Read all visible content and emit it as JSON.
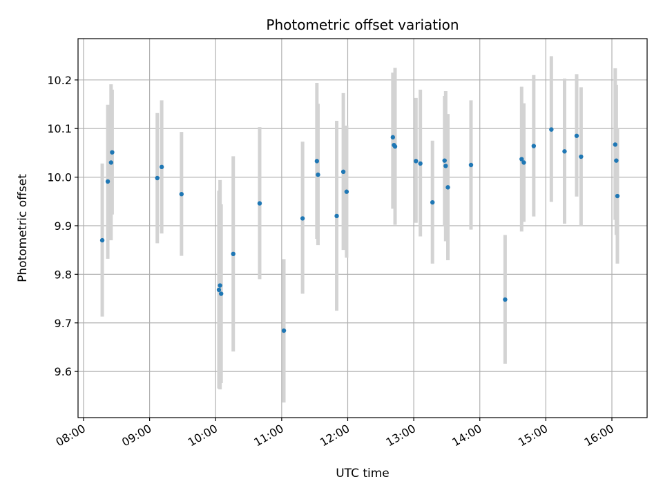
{
  "chart_data": {
    "type": "scatter",
    "title": "Photometric offset variation",
    "xlabel": "UTC time",
    "ylabel": "Photometric offset",
    "xlim": [
      "07:55",
      "16:32"
    ],
    "ylim": [
      9.505,
      10.285
    ],
    "xticks": [
      "08:00",
      "09:00",
      "10:00",
      "11:00",
      "12:00",
      "13:00",
      "14:00",
      "15:00",
      "16:00"
    ],
    "yticks": [
      9.6,
      9.7,
      9.8,
      9.9,
      10.0,
      10.1,
      10.2
    ],
    "grid": true,
    "colors": {
      "point": "#1f77b4",
      "errorbar": "#d3d3d3",
      "grid": "#b0b0b0"
    },
    "points": [
      {
        "x": "08:17",
        "y": 9.87,
        "ylow": 9.713,
        "yhigh": 10.028
      },
      {
        "x": "08:22",
        "y": 9.991,
        "ylow": 9.832,
        "yhigh": 10.149
      },
      {
        "x": "08:25",
        "y": 10.03,
        "ylow": 9.87,
        "yhigh": 10.191
      },
      {
        "x": "08:26",
        "y": 10.051,
        "ylow": 9.923,
        "yhigh": 10.18
      },
      {
        "x": "09:07",
        "y": 9.998,
        "ylow": 9.864,
        "yhigh": 10.132
      },
      {
        "x": "09:11",
        "y": 10.021,
        "ylow": 9.884,
        "yhigh": 10.158
      },
      {
        "x": "09:29",
        "y": 9.965,
        "ylow": 9.838,
        "yhigh": 10.093
      },
      {
        "x": "10:03",
        "y": 9.768,
        "ylow": 9.565,
        "yhigh": 9.972
      },
      {
        "x": "10:04",
        "y": 9.777,
        "ylow": 9.563,
        "yhigh": 9.994
      },
      {
        "x": "10:05",
        "y": 9.76,
        "ylow": 9.576,
        "yhigh": 9.944
      },
      {
        "x": "10:16",
        "y": 9.842,
        "ylow": 9.641,
        "yhigh": 10.043
      },
      {
        "x": "10:40",
        "y": 9.946,
        "ylow": 9.79,
        "yhigh": 10.103
      },
      {
        "x": "11:02",
        "y": 9.684,
        "ylow": 9.536,
        "yhigh": 9.831
      },
      {
        "x": "11:19",
        "y": 9.915,
        "ylow": 9.76,
        "yhigh": 10.073
      },
      {
        "x": "11:32",
        "y": 10.033,
        "ylow": 9.873,
        "yhigh": 10.194
      },
      {
        "x": "11:33",
        "y": 10.005,
        "ylow": 9.86,
        "yhigh": 10.151
      },
      {
        "x": "11:50",
        "y": 9.92,
        "ylow": 9.725,
        "yhigh": 10.116
      },
      {
        "x": "11:56",
        "y": 10.011,
        "ylow": 9.85,
        "yhigh": 10.173
      },
      {
        "x": "11:59",
        "y": 9.97,
        "ylow": 9.834,
        "yhigh": 10.106
      },
      {
        "x": "12:41",
        "y": 10.082,
        "ylow": 9.935,
        "yhigh": 10.215
      },
      {
        "x": "12:42",
        "y": 10.066,
        "ylow": 9.94,
        "yhigh": 10.193
      },
      {
        "x": "12:43",
        "y": 10.063,
        "ylow": 9.902,
        "yhigh": 10.225
      },
      {
        "x": "13:02",
        "y": 10.033,
        "ylow": 9.906,
        "yhigh": 10.163
      },
      {
        "x": "13:06",
        "y": 10.028,
        "ylow": 9.878,
        "yhigh": 10.18
      },
      {
        "x": "13:17",
        "y": 9.948,
        "ylow": 9.822,
        "yhigh": 10.075
      },
      {
        "x": "13:28",
        "y": 10.034,
        "ylow": 9.9,
        "yhigh": 10.167
      },
      {
        "x": "13:29",
        "y": 10.023,
        "ylow": 9.868,
        "yhigh": 10.177
      },
      {
        "x": "13:31",
        "y": 9.979,
        "ylow": 9.829,
        "yhigh": 10.13
      },
      {
        "x": "13:52",
        "y": 10.025,
        "ylow": 9.892,
        "yhigh": 10.158
      },
      {
        "x": "14:23",
        "y": 9.748,
        "ylow": 9.616,
        "yhigh": 9.881
      },
      {
        "x": "14:38",
        "y": 10.037,
        "ylow": 9.888,
        "yhigh": 10.186
      },
      {
        "x": "14:40",
        "y": 10.03,
        "ylow": 9.908,
        "yhigh": 10.152
      },
      {
        "x": "14:49",
        "y": 10.064,
        "ylow": 9.919,
        "yhigh": 10.21
      },
      {
        "x": "15:05",
        "y": 10.098,
        "ylow": 9.949,
        "yhigh": 10.249
      },
      {
        "x": "15:17",
        "y": 10.053,
        "ylow": 9.904,
        "yhigh": 10.203
      },
      {
        "x": "15:28",
        "y": 10.085,
        "ylow": 9.96,
        "yhigh": 10.212
      },
      {
        "x": "15:32",
        "y": 10.042,
        "ylow": 9.9,
        "yhigh": 10.185
      },
      {
        "x": "16:03",
        "y": 10.067,
        "ylow": 9.912,
        "yhigh": 10.224
      },
      {
        "x": "16:04",
        "y": 10.034,
        "ylow": 9.881,
        "yhigh": 10.19
      },
      {
        "x": "16:05",
        "y": 9.961,
        "ylow": 9.822,
        "yhigh": 10.1
      }
    ]
  }
}
